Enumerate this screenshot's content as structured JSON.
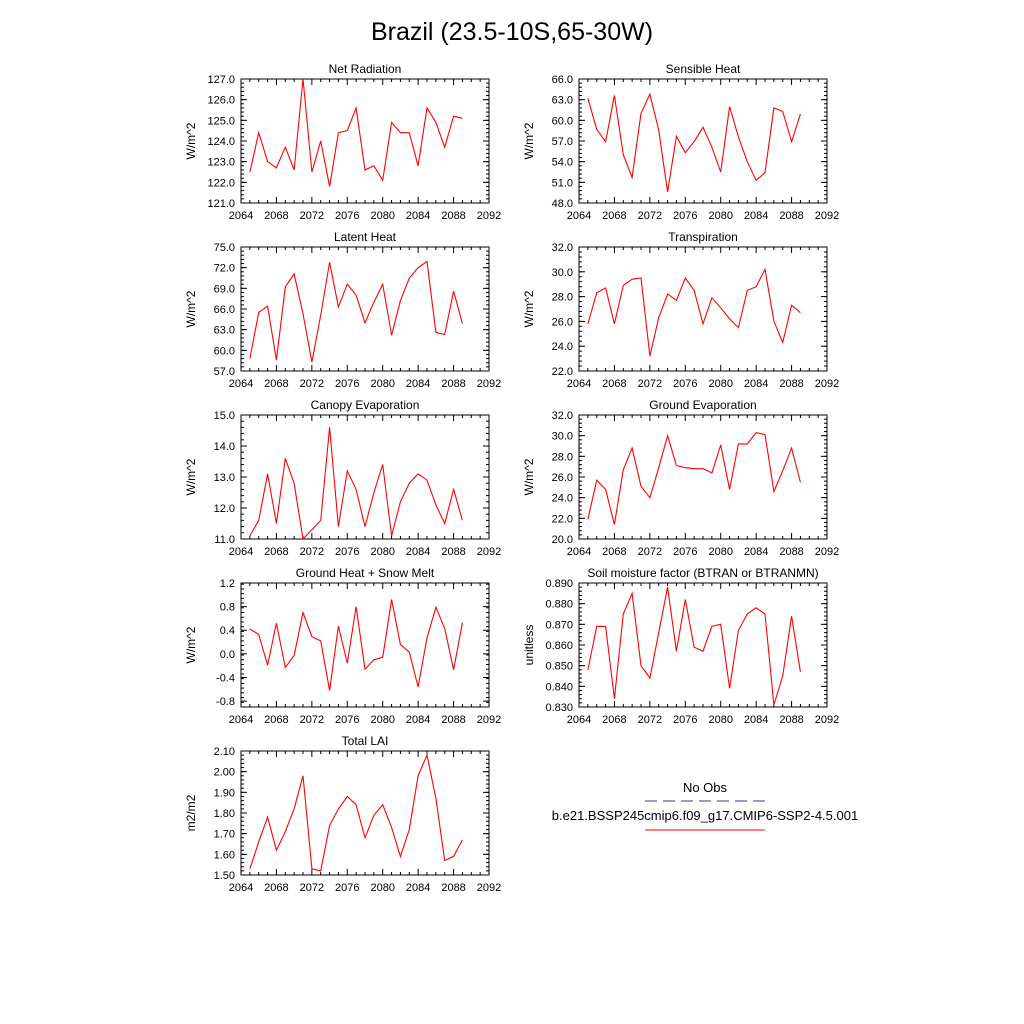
{
  "figure": {
    "title": "Brazil (23.5-10S,65-30W)",
    "legend": {
      "obs_label": "No Obs",
      "obs_color": "#333399",
      "model_label": "b.e21.BSSP245cmip6.f09_g17.CMIP6-SSP2-4.5.001",
      "model_color": "#ff0000"
    }
  },
  "chart_data": [
    {
      "type": "line",
      "title": "Net Radiation",
      "ylabel": "W/m^2",
      "xlim": [
        2064,
        2092
      ],
      "xticks": [
        "2064",
        "2068",
        "2072",
        "2076",
        "2080",
        "2084",
        "2088",
        "2092"
      ],
      "ylim": [
        121.0,
        127.0
      ],
      "yticks": [
        "121.0",
        "122.0",
        "123.0",
        "124.0",
        "125.0",
        "126.0",
        "127.0"
      ],
      "x": [
        2065,
        2066,
        2067,
        2068,
        2069,
        2070,
        2071,
        2072,
        2073,
        2074,
        2075,
        2076,
        2077,
        2078,
        2079,
        2080,
        2081,
        2082,
        2083,
        2084,
        2085,
        2086,
        2087,
        2088,
        2089
      ],
      "series": [
        {
          "color": "#ff0000",
          "values": [
            122.5,
            124.4,
            123.0,
            122.7,
            123.7,
            122.6,
            127.0,
            122.5,
            124.0,
            121.8,
            124.4,
            124.5,
            125.6,
            122.6,
            122.8,
            122.1,
            124.9,
            124.4,
            124.4,
            122.8,
            125.6,
            124.9,
            123.7,
            125.2,
            125.1
          ]
        }
      ]
    },
    {
      "type": "line",
      "title": "Sensible Heat",
      "ylabel": "W/m^2",
      "xlim": [
        2064,
        2092
      ],
      "xticks": [
        "2064",
        "2068",
        "2072",
        "2076",
        "2080",
        "2084",
        "2088",
        "2092"
      ],
      "ylim": [
        48.0,
        66.0
      ],
      "yticks": [
        "48.0",
        "51.0",
        "54.0",
        "57.0",
        "60.0",
        "63.0",
        "66.0"
      ],
      "x": [
        2065,
        2066,
        2067,
        2068,
        2069,
        2070,
        2071,
        2072,
        2073,
        2074,
        2075,
        2076,
        2077,
        2078,
        2079,
        2080,
        2081,
        2082,
        2083,
        2084,
        2085,
        2086,
        2087,
        2088,
        2089
      ],
      "series": [
        {
          "color": "#ff0000",
          "values": [
            63.2,
            58.7,
            56.9,
            63.6,
            55.0,
            51.7,
            61.0,
            63.8,
            58.6,
            49.6,
            57.7,
            55.3,
            56.9,
            59.0,
            56.1,
            52.5,
            62.0,
            57.6,
            54.0,
            51.3,
            52.4,
            61.8,
            61.3,
            56.9,
            60.9
          ]
        }
      ]
    },
    {
      "type": "line",
      "title": "Latent Heat",
      "ylabel": "W/m^2",
      "xlim": [
        2064,
        2092
      ],
      "xticks": [
        "2064",
        "2068",
        "2072",
        "2076",
        "2080",
        "2084",
        "2088",
        "2092"
      ],
      "ylim": [
        57.0,
        75.0
      ],
      "yticks": [
        "57.0",
        "60.0",
        "63.0",
        "66.0",
        "69.0",
        "72.0",
        "75.0"
      ],
      "x": [
        2065,
        2066,
        2067,
        2068,
        2069,
        2070,
        2071,
        2072,
        2073,
        2074,
        2075,
        2076,
        2077,
        2078,
        2079,
        2080,
        2081,
        2082,
        2083,
        2084,
        2085,
        2086,
        2087,
        2088,
        2089
      ],
      "series": [
        {
          "color": "#ff0000",
          "values": [
            58.8,
            65.5,
            66.4,
            58.6,
            69.2,
            71.1,
            65.3,
            58.3,
            65.1,
            72.8,
            66.3,
            69.6,
            68.0,
            64.0,
            67.0,
            69.6,
            62.2,
            67.2,
            70.5,
            72.0,
            72.9,
            62.6,
            62.3,
            68.6,
            63.9
          ]
        }
      ]
    },
    {
      "type": "line",
      "title": "Transpiration",
      "ylabel": "W/m^2",
      "xlim": [
        2064,
        2092
      ],
      "xticks": [
        "2064",
        "2068",
        "2072",
        "2076",
        "2080",
        "2084",
        "2088",
        "2092"
      ],
      "ylim": [
        22.0,
        32.0
      ],
      "yticks": [
        "22.0",
        "24.0",
        "26.0",
        "28.0",
        "30.0",
        "32.0"
      ],
      "x": [
        2065,
        2066,
        2067,
        2068,
        2069,
        2070,
        2071,
        2072,
        2073,
        2074,
        2075,
        2076,
        2077,
        2078,
        2079,
        2080,
        2081,
        2082,
        2083,
        2084,
        2085,
        2086,
        2087,
        2088,
        2089
      ],
      "series": [
        {
          "color": "#ff0000",
          "values": [
            25.8,
            28.3,
            28.7,
            25.8,
            28.9,
            29.4,
            29.5,
            23.2,
            26.3,
            28.2,
            27.7,
            29.5,
            28.5,
            25.8,
            27.9,
            27.1,
            26.2,
            25.5,
            28.5,
            28.8,
            30.2,
            26.0,
            24.3,
            27.3,
            26.7
          ]
        }
      ]
    },
    {
      "type": "line",
      "title": "Canopy Evaporation",
      "ylabel": "W/m^2",
      "xlim": [
        2064,
        2092
      ],
      "xticks": [
        "2064",
        "2068",
        "2072",
        "2076",
        "2080",
        "2084",
        "2088",
        "2092"
      ],
      "ylim": [
        11.0,
        15.0
      ],
      "yticks": [
        "11.0",
        "12.0",
        "13.0",
        "14.0",
        "15.0"
      ],
      "x": [
        2065,
        2066,
        2067,
        2068,
        2069,
        2070,
        2071,
        2072,
        2073,
        2074,
        2075,
        2076,
        2077,
        2078,
        2079,
        2080,
        2081,
        2082,
        2083,
        2084,
        2085,
        2086,
        2087,
        2088,
        2089
      ],
      "series": [
        {
          "color": "#ff0000",
          "values": [
            11.1,
            11.6,
            13.1,
            11.5,
            13.6,
            12.8,
            11.0,
            11.3,
            11.6,
            14.6,
            11.4,
            13.2,
            12.6,
            11.4,
            12.5,
            13.4,
            11.1,
            12.2,
            12.8,
            13.1,
            12.9,
            12.1,
            11.5,
            12.6,
            11.6
          ]
        }
      ]
    },
    {
      "type": "line",
      "title": "Ground Evaporation",
      "ylabel": "W/m^2",
      "xlim": [
        2064,
        2092
      ],
      "xticks": [
        "2064",
        "2068",
        "2072",
        "2076",
        "2080",
        "2084",
        "2088",
        "2092"
      ],
      "ylim": [
        20.0,
        32.0
      ],
      "yticks": [
        "20.0",
        "22.0",
        "24.0",
        "26.0",
        "28.0",
        "30.0",
        "32.0"
      ],
      "x": [
        2065,
        2066,
        2067,
        2068,
        2069,
        2070,
        2071,
        2072,
        2073,
        2074,
        2075,
        2076,
        2077,
        2078,
        2079,
        2080,
        2081,
        2082,
        2083,
        2084,
        2085,
        2086,
        2087,
        2088,
        2089
      ],
      "series": [
        {
          "color": "#ff0000",
          "values": [
            21.9,
            25.7,
            24.8,
            21.4,
            26.7,
            28.8,
            25.1,
            24.0,
            26.9,
            30.0,
            27.1,
            26.9,
            26.8,
            26.8,
            26.4,
            29.1,
            24.8,
            29.2,
            29.2,
            30.3,
            30.1,
            24.6,
            26.6,
            28.8,
            25.5
          ]
        }
      ]
    },
    {
      "type": "line",
      "title": "Ground Heat + Snow Melt",
      "ylabel": "W/m^2",
      "xlim": [
        2064,
        2092
      ],
      "xticks": [
        "2064",
        "2068",
        "2072",
        "2076",
        "2080",
        "2084",
        "2088",
        "2092"
      ],
      "ylim": [
        -0.9,
        1.2
      ],
      "yticks": [
        "-0.8",
        "-0.4",
        "0.0",
        "0.4",
        "0.8",
        "1.2"
      ],
      "x": [
        2065,
        2066,
        2067,
        2068,
        2069,
        2070,
        2071,
        2072,
        2073,
        2074,
        2075,
        2076,
        2077,
        2078,
        2079,
        2080,
        2081,
        2082,
        2083,
        2084,
        2085,
        2086,
        2087,
        2088,
        2089
      ],
      "series": [
        {
          "color": "#ff0000",
          "values": [
            0.42,
            0.33,
            -0.19,
            0.52,
            -0.23,
            -0.03,
            0.7,
            0.29,
            0.22,
            -0.62,
            0.47,
            -0.16,
            0.8,
            -0.26,
            -0.1,
            -0.06,
            0.92,
            0.16,
            0.03,
            -0.56,
            0.27,
            0.79,
            0.43,
            -0.27,
            0.53
          ]
        }
      ]
    },
    {
      "type": "line",
      "title": "Soil moisture factor (BTRAN or BTRANMN)",
      "ylabel": "unitless",
      "xlim": [
        2064,
        2092
      ],
      "xticks": [
        "2064",
        "2068",
        "2072",
        "2076",
        "2080",
        "2084",
        "2088",
        "2092"
      ],
      "ylim": [
        0.83,
        0.89
      ],
      "yticks": [
        "0.830",
        "0.840",
        "0.850",
        "0.860",
        "0.870",
        "0.880",
        "0.890"
      ],
      "x": [
        2065,
        2066,
        2067,
        2068,
        2069,
        2070,
        2071,
        2072,
        2073,
        2074,
        2075,
        2076,
        2077,
        2078,
        2079,
        2080,
        2081,
        2082,
        2083,
        2084,
        2085,
        2086,
        2087,
        2088,
        2089
      ],
      "series": [
        {
          "color": "#ff0000",
          "values": [
            0.848,
            0.869,
            0.869,
            0.834,
            0.875,
            0.885,
            0.85,
            0.844,
            0.866,
            0.888,
            0.857,
            0.882,
            0.859,
            0.857,
            0.869,
            0.87,
            0.839,
            0.867,
            0.875,
            0.878,
            0.875,
            0.831,
            0.845,
            0.874,
            0.847
          ]
        }
      ]
    },
    {
      "type": "line",
      "title": "Total LAI",
      "ylabel": "m2/m2",
      "xlim": [
        2064,
        2092
      ],
      "xticks": [
        "2064",
        "2068",
        "2072",
        "2076",
        "2080",
        "2084",
        "2088",
        "2092"
      ],
      "ylim": [
        1.5,
        2.1
      ],
      "yticks": [
        "1.50",
        "1.60",
        "1.70",
        "1.80",
        "1.90",
        "2.00",
        "2.10"
      ],
      "x": [
        2065,
        2066,
        2067,
        2068,
        2069,
        2070,
        2071,
        2072,
        2073,
        2074,
        2075,
        2076,
        2077,
        2078,
        2079,
        2080,
        2081,
        2082,
        2083,
        2084,
        2085,
        2086,
        2087,
        2088,
        2089
      ],
      "series": [
        {
          "color": "#ff0000",
          "values": [
            1.53,
            1.66,
            1.78,
            1.62,
            1.71,
            1.82,
            1.98,
            1.53,
            1.52,
            1.74,
            1.82,
            1.88,
            1.84,
            1.68,
            1.79,
            1.84,
            1.73,
            1.59,
            1.72,
            1.98,
            2.08,
            1.87,
            1.57,
            1.59,
            1.67
          ]
        }
      ]
    }
  ]
}
